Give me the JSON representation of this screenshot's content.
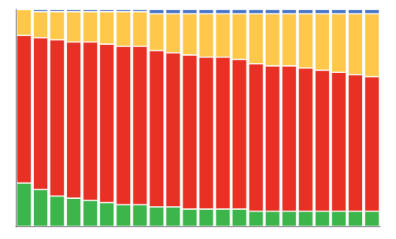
{
  "chart_data": {
    "type": "bar",
    "stacked": true,
    "categories": [
      null,
      null,
      null,
      null,
      null,
      null,
      null,
      null,
      null,
      null,
      null,
      null,
      null,
      null,
      null,
      null,
      null,
      null,
      null,
      null,
      null,
      null
    ],
    "series": [
      {
        "color": "#3cb54a",
        "values": [
          20,
          17,
          14,
          13,
          12,
          11,
          10,
          10,
          9,
          9,
          8,
          8,
          8,
          8,
          7,
          7,
          7,
          7,
          7,
          7,
          7,
          7
        ]
      },
      {
        "color": "#e83024",
        "values": [
          68,
          70,
          72,
          72,
          73,
          73,
          73,
          73,
          72,
          71,
          71,
          70,
          70,
          69,
          68,
          67,
          67,
          66,
          65,
          64,
          63,
          62
        ]
      },
      {
        "color": "#ffc84a",
        "values": [
          12,
          12,
          13,
          14,
          14,
          15,
          16,
          16,
          17,
          18,
          19,
          20,
          20,
          21,
          23,
          24,
          24,
          25,
          26,
          27,
          28,
          29
        ]
      },
      {
        "color": "#4472c4",
        "values": [
          0,
          1,
          1,
          1,
          1,
          1,
          1,
          1,
          2,
          2,
          2,
          2,
          2,
          2,
          2,
          2,
          2,
          2,
          2,
          2,
          2,
          2
        ]
      }
    ],
    "ylim": [
      0,
      100
    ],
    "grid": false,
    "tick_labels": false
  }
}
